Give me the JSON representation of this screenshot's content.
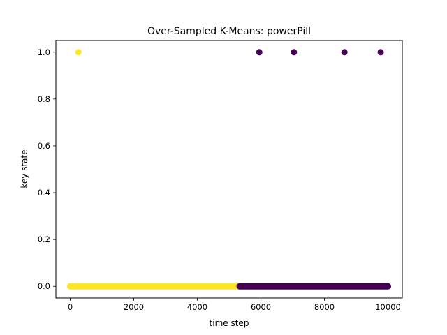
{
  "chart_data": {
    "type": "scatter",
    "title": "Over-Sampled K-Means: powerPill",
    "xlabel": "time step",
    "ylabel": "key state",
    "xlim": [
      -450,
      10450
    ],
    "ylim": [
      -0.05,
      1.05
    ],
    "x_ticks": [
      0,
      2000,
      4000,
      6000,
      8000,
      10000
    ],
    "y_ticks": [
      0.0,
      0.2,
      0.4,
      0.6,
      0.8,
      1.0
    ],
    "x_tick_labels": [
      "0",
      "2000",
      "4000",
      "6000",
      "8000",
      "10000"
    ],
    "y_tick_labels": [
      "0.0",
      "0.2",
      "0.4",
      "0.6",
      "0.8",
      "1.0"
    ],
    "grid": false,
    "colors": {
      "cluster_0": "#440154",
      "cluster_1": "#fde725"
    },
    "series": [
      {
        "name": "cluster_1",
        "color_key": "cluster_1",
        "points": [
          [
            260,
            1.0
          ]
        ],
        "ranges": [
          {
            "x_start": 0,
            "x_end": 5330,
            "y": 0.0
          }
        ]
      },
      {
        "name": "cluster_0",
        "color_key": "cluster_0",
        "points": [
          [
            5950,
            1.0
          ],
          [
            7040,
            1.0
          ],
          [
            8630,
            1.0
          ],
          [
            9770,
            1.0
          ]
        ],
        "ranges": [
          {
            "x_start": 5330,
            "x_end": 10000,
            "y": 0.0
          }
        ]
      }
    ]
  }
}
